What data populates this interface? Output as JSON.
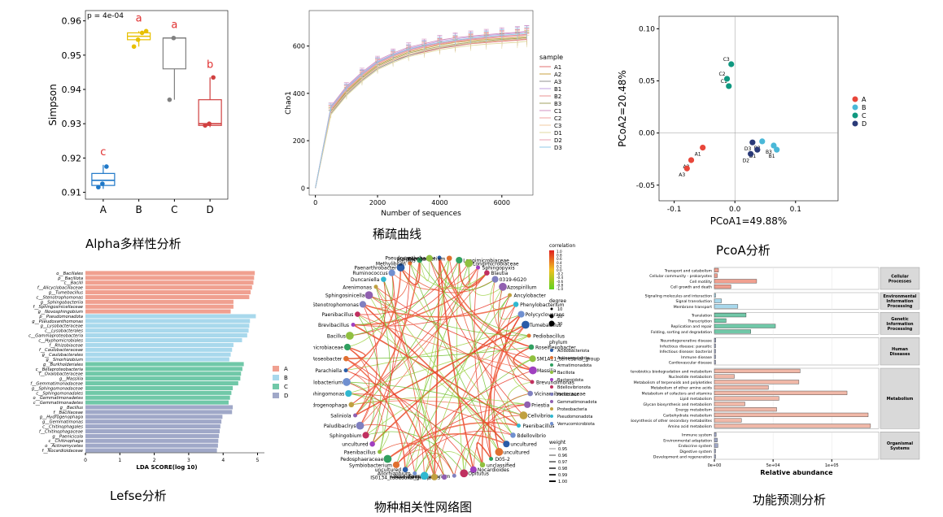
{
  "captions": {
    "alpha": "Alpha多样性分析",
    "rarefaction": "稀疏曲线",
    "pcoa": "PcoA分析",
    "lefse": "Lefse分析",
    "network": "物种相关性网络图",
    "function": "功能预测分析"
  },
  "colors": {
    "A": "#1f78c8",
    "B": "#e8c000",
    "C": "#808080",
    "D": "#d04040"
  },
  "chart_data": [
    {
      "id": "alpha",
      "type": "box",
      "annotation": "p = 4e-04",
      "ylabel": "Simpson",
      "ylim": [
        0.908,
        0.963
      ],
      "yticks": [
        "0.91",
        "0.92",
        "0.93",
        "0.94",
        "0.95",
        "0.96"
      ],
      "categories": [
        "A",
        "B",
        "C",
        "D"
      ],
      "letters": [
        "c",
        "a",
        "a",
        "b"
      ],
      "boxes": [
        {
          "min": 0.911,
          "q1": 0.912,
          "median": 0.9135,
          "q3": 0.9155,
          "max": 0.918,
          "points": [
            0.9115,
            0.9125,
            0.9175
          ]
        },
        {
          "min": 0.9525,
          "q1": 0.9545,
          "median": 0.9555,
          "q3": 0.9565,
          "max": 0.957,
          "points": [
            0.9525,
            0.9545,
            0.9565,
            0.957
          ]
        },
        {
          "min": 0.937,
          "q1": 0.946,
          "median": 0.955,
          "q3": 0.955,
          "max": 0.955,
          "points": [
            0.937,
            0.955
          ]
        },
        {
          "min": 0.929,
          "q1": 0.9295,
          "median": 0.93,
          "q3": 0.937,
          "max": 0.9435,
          "points": [
            0.9295,
            0.93,
            0.9435
          ]
        }
      ]
    },
    {
      "id": "rarefaction",
      "type": "line",
      "xlabel": "Number of sequences",
      "ylabel": "Chao1",
      "xlim": [
        -200,
        7000
      ],
      "ylim": [
        -30,
        750
      ],
      "xticks": [
        0,
        2000,
        4000,
        6000
      ],
      "yticks": [
        0,
        200,
        400,
        600
      ],
      "legend_title": "sample",
      "x": [
        0,
        500,
        1000,
        1500,
        2000,
        2500,
        3000,
        3500,
        4000,
        4500,
        5000,
        5500,
        6000,
        6500,
        6800
      ],
      "series": [
        {
          "name": "A1",
          "color": "#e07070",
          "values": [
            0,
            320,
            400,
            460,
            510,
            540,
            560,
            575,
            590,
            600,
            610,
            615,
            620,
            625,
            628
          ]
        },
        {
          "name": "A2",
          "color": "#c8a040",
          "values": [
            0,
            330,
            410,
            470,
            520,
            550,
            575,
            590,
            605,
            615,
            622,
            628,
            632,
            636,
            640
          ]
        },
        {
          "name": "A3",
          "color": "#909090",
          "values": [
            0,
            315,
            395,
            455,
            505,
            535,
            560,
            578,
            592,
            602,
            612,
            618,
            624,
            628,
            632
          ]
        },
        {
          "name": "B1",
          "color": "#c0a0e0",
          "values": [
            0,
            340,
            425,
            485,
            535,
            565,
            590,
            605,
            620,
            630,
            638,
            644,
            650,
            655,
            660
          ]
        },
        {
          "name": "B2",
          "color": "#e89090",
          "values": [
            0,
            335,
            420,
            480,
            530,
            560,
            585,
            600,
            612,
            622,
            630,
            636,
            642,
            646,
            650
          ]
        },
        {
          "name": "B3",
          "color": "#a0a060",
          "values": [
            0,
            325,
            405,
            465,
            515,
            545,
            570,
            585,
            598,
            608,
            616,
            622,
            628,
            632,
            635
          ]
        },
        {
          "name": "C1",
          "color": "#d090c0",
          "values": [
            0,
            345,
            430,
            490,
            540,
            570,
            595,
            610,
            625,
            635,
            642,
            648,
            654,
            658,
            662
          ]
        },
        {
          "name": "C2",
          "color": "#f0a0a0",
          "values": [
            0,
            330,
            415,
            475,
            525,
            555,
            580,
            595,
            608,
            618,
            626,
            632,
            638,
            642,
            646
          ]
        },
        {
          "name": "C3",
          "color": "#f0c8a0",
          "values": [
            0,
            320,
            400,
            460,
            510,
            540,
            565,
            580,
            594,
            604,
            612,
            618,
            624,
            628,
            632
          ]
        },
        {
          "name": "D1",
          "color": "#e0d8a0",
          "values": [
            0,
            310,
            390,
            450,
            500,
            530,
            555,
            570,
            584,
            594,
            602,
            608,
            612,
            616,
            620
          ]
        },
        {
          "name": "D2",
          "color": "#e8a0b0",
          "values": [
            0,
            335,
            418,
            478,
            528,
            558,
            582,
            598,
            610,
            620,
            628,
            634,
            640,
            644,
            648
          ]
        },
        {
          "name": "D3",
          "color": "#90c8e8",
          "values": [
            0,
            340,
            422,
            482,
            532,
            562,
            586,
            602,
            615,
            625,
            633,
            640,
            646,
            650,
            654
          ]
        }
      ]
    },
    {
      "id": "pcoa",
      "type": "scatter",
      "xlabel": "PCoA1=49.88%",
      "ylabel": "PCoA2=20.48%",
      "xlim": [
        -0.125,
        0.17
      ],
      "ylim": [
        -0.065,
        0.112
      ],
      "xticks": [
        "-0.1",
        "0.0",
        "0.1"
      ],
      "xtick_values": [
        -0.1,
        0.0,
        0.1
      ],
      "yticks": [
        "-0.05",
        "0.00",
        "0.05",
        "0.10"
      ],
      "ytick_values": [
        -0.05,
        0.0,
        0.05,
        0.1
      ],
      "legend": [
        "A",
        "B",
        "C",
        "D"
      ],
      "legend_colors": [
        "#e8463a",
        "#4ab8d8",
        "#109880",
        "#2a3a78"
      ],
      "points": [
        {
          "label": "A1",
          "group": "A",
          "x": -0.053,
          "y": -0.014
        },
        {
          "label": "A2",
          "group": "A",
          "x": -0.072,
          "y": -0.026
        },
        {
          "label": "A3",
          "group": "A",
          "x": -0.079,
          "y": -0.034
        },
        {
          "label": "B1",
          "group": "B",
          "x": 0.069,
          "y": -0.016
        },
        {
          "label": "B2",
          "group": "B",
          "x": 0.045,
          "y": -0.008
        },
        {
          "label": "B3",
          "group": "B",
          "x": 0.064,
          "y": -0.012
        },
        {
          "label": "C1",
          "group": "C",
          "x": -0.01,
          "y": 0.045
        },
        {
          "label": "C2",
          "group": "C",
          "x": -0.013,
          "y": 0.052
        },
        {
          "label": "C3",
          "group": "C",
          "x": -0.006,
          "y": 0.066
        },
        {
          "label": "D1",
          "group": "D",
          "x": 0.037,
          "y": -0.016
        },
        {
          "label": "D2",
          "group": "D",
          "x": 0.026,
          "y": -0.02
        },
        {
          "label": "D3",
          "group": "D",
          "x": 0.029,
          "y": -0.009
        }
      ]
    },
    {
      "id": "lefse",
      "type": "bar",
      "orientation": "horizontal",
      "xlabel": "LDA SCORE(log 10)",
      "xlim": [
        0,
        5.2
      ],
      "xticks": [
        0,
        1,
        2,
        3,
        4,
        5
      ],
      "legend": [
        "A",
        "B",
        "C",
        "D"
      ],
      "legend_colors": [
        "#f0a090",
        "#a8d8ec",
        "#70c8a8",
        "#a0a8c8"
      ],
      "categories": [
        "o__Bacillales",
        "p__Bacillota",
        "c__Bacilli",
        "f__Alicyclobacillaceae",
        "g__Tumebacillus",
        "c__Stenotrophomonas",
        "g__Sphingobacteriia",
        "f__Sphingosinicellaceae",
        "g__Novosphingobium",
        "p__Pseudomonadota",
        "g__Pseudoxanthomonas",
        "g__Lysobacteraceae",
        "c__Lysobacterales",
        "c__Gammaproteobacteria",
        "c__Hyphomicrobiales",
        "f__Rhizobiaceae",
        "f__Caulobacteraceae",
        "g__Caulobacterales",
        "g__Sinorhizobium",
        "g__Burkholderiales",
        "c__Betaproteobacteria",
        "f__Oxalobacteraceae",
        "g__Massilia",
        "f__Gemmatimonadaceae",
        "g__Sphingomonadaceae",
        "c__Sphingomonadales",
        "o__Gemmatimonadetes",
        "c__Gemmatimonadetes",
        "g__Bacillus",
        "f__Bacillaceae",
        "g__Hydrogenophaga",
        "g__Gemmatimonas",
        "c__Chitinophagales",
        "f__Chitinophagaceae",
        "g__Paenicicola",
        "c__Chitinophaga",
        "o__Actinomycetes",
        "f__Nocardioidaceae"
      ],
      "values": [
        4.92,
        4.9,
        4.88,
        4.84,
        4.8,
        4.76,
        4.3,
        4.3,
        4.22,
        4.95,
        4.78,
        4.76,
        4.74,
        4.7,
        4.55,
        4.3,
        4.26,
        4.22,
        4.18,
        4.6,
        4.56,
        4.52,
        4.5,
        4.44,
        4.28,
        4.24,
        4.2,
        4.16,
        4.28,
        4.26,
        3.98,
        3.95,
        3.92,
        3.9,
        3.88,
        3.86,
        3.85,
        3.82
      ],
      "groups": [
        "A",
        "A",
        "A",
        "A",
        "A",
        "A",
        "A",
        "A",
        "A",
        "B",
        "B",
        "B",
        "B",
        "B",
        "B",
        "B",
        "B",
        "B",
        "B",
        "C",
        "C",
        "C",
        "C",
        "C",
        "C",
        "C",
        "C",
        "C",
        "D",
        "D",
        "D",
        "D",
        "D",
        "D",
        "D",
        "D",
        "D",
        "D"
      ]
    },
    {
      "id": "network",
      "type": "network",
      "legend_colorbar_title": "correlation",
      "colorbar_ticks": [
        "1.0",
        "0.8",
        "0.6",
        "0.4",
        "0.2",
        "0.0",
        "-0.2",
        "-0.4",
        "-0.6",
        "-0.8",
        "-1.0"
      ],
      "degree_title": "degree",
      "degree_values": [
        "10",
        "20",
        "30"
      ],
      "phylum_title": "phylum",
      "phyla": [
        "Acidobacteriota",
        "Actinomycetota",
        "Armatimonadota",
        "Bacillota",
        "Bacteroidota",
        "Bdellovibrionota",
        "Firmicutes",
        "Gemmatimonadota",
        "Proteobacteria",
        "Pseudomonadota",
        "Verrucomicrobiota"
      ],
      "phyla_colors": [
        "#2a5ca8",
        "#e07030",
        "#30a060",
        "#90c040",
        "#a040c0",
        "#c03060",
        "#8080c0",
        "#9060b0",
        "#c0a040",
        "#30b8d0",
        "#7090d0"
      ],
      "weight_title": "weight",
      "weights": [
        "0.95",
        "0.96",
        "0.97",
        "0.98",
        "0.99",
        "1.00"
      ],
      "nodes": [
        "Pseudoxanthobacter",
        "Brevibacterium",
        "Longimicrobiaceae",
        "Longimicrobiaceae",
        "Sphingopyxis",
        "Blautia",
        "0319-6G20",
        "Azospirillum",
        "Ancylobacter",
        "Phenylobacterium",
        "Polycyclovorans",
        "Tumebacillus",
        "Pediobacillus",
        "Roseiflexobacter",
        "SM1A11_terrestrial_group",
        "Massilia",
        "Brevundimonas",
        "Vicinamibacteraceae",
        "Priestia",
        "Cellvibrio",
        "Paenibacillus",
        "Bdellovibrio",
        "uncultured",
        "uncultured",
        "D05-2",
        "unclassified",
        "Nocardioides",
        "Opitutus",
        "Exiguobacterium",
        "Pseudoxanthomonas",
        "IS0134_terrestrial_group",
        "Roseateles",
        "Allorhizobium",
        "uncultured",
        "Symbiobacterium",
        "Pedosphaeraceae",
        "Paenibacillus",
        "uncultured",
        "Sphingobium",
        "Paludibaclrys",
        "Saliniola",
        "Hydrogenophaga",
        "Sphingomonas",
        "Phenylobacterium",
        "Parachiella",
        "Roseobacter",
        "Longimicrobiaceae",
        "Bacillus",
        "Brevibacillus",
        "Paenibacillus",
        "Stenotrophomonas",
        "Sphingosinicella",
        "Arenimonas",
        "Duncaniella",
        "Ruminococcus",
        "Paenarthrobacter",
        "Methylibium",
        "Bacillus",
        "Halomonas"
      ]
    },
    {
      "id": "function",
      "type": "bar",
      "orientation": "horizontal",
      "xlabel": "Relative abundance",
      "xticks": [
        "0e+00",
        "5e+04",
        "1e+05"
      ],
      "xtick_values": [
        0,
        50000,
        100000
      ],
      "xlim": [
        0,
        140000
      ],
      "legend": [
        "A",
        "B",
        "C",
        "D"
      ],
      "facets": [
        {
          "label": "Cellular\nProcesses",
          "categories": [
            "Transport and catabolism",
            "Cellular community - prokaryotes",
            "Cell motility",
            "Cell growth and death"
          ],
          "values": [
            3500,
            2500,
            36000,
            14000
          ],
          "colors": [
            "#f0a090",
            "#f0a090",
            "#f0a090",
            "#f0a090"
          ]
        },
        {
          "label": "Environmental\nInformation\nProcessing",
          "categories": [
            "Signaling molecules and interaction",
            "Signal transduction",
            "Membrane transport"
          ],
          "values": [
            400,
            6000,
            20000
          ],
          "colors": [
            "#a8d8ec",
            "#a8d8ec",
            "#a8d8ec"
          ]
        },
        {
          "label": "Genetic\nInformation\nProcessing",
          "categories": [
            "Translation",
            "Transcription",
            "Replication and repair",
            "Folding, sorting and degradation"
          ],
          "values": [
            27000,
            10000,
            52000,
            31000
          ],
          "colors": [
            "#70c8a8",
            "#70c8a8",
            "#70c8a8",
            "#70c8a8"
          ]
        },
        {
          "label": "Human\nDiseases",
          "categories": [
            "Neurodegenerative disease",
            "Infectious disease: parasitic",
            "Infectious disease: bacterial",
            "Immune disease",
            "Cardiovascular disease"
          ],
          "values": [
            1200,
            800,
            1000,
            600,
            500
          ],
          "colors": [
            "#a0a8c8",
            "#a0a8c8",
            "#a0a8c8",
            "#a0a8c8",
            "#a0a8c8"
          ]
        },
        {
          "label": "Metabolism",
          "categories": [
            "Xenobiotics biodegradation and metabolism",
            "Nucleotide metabolism",
            "Metabolism of terpenoids and polyketides",
            "Metabolism of other amino acids",
            "Metabolism of cofactors and vitamins",
            "Lipid metabolism",
            "Glycan biosynthesis and metabolism",
            "Energy metabolism",
            "Carbohydrate metabolism",
            "Biosynthesis of other secondary metabolites",
            "Amino acid metabolism"
          ],
          "values": [
            73000,
            17000,
            72000,
            46000,
            113000,
            55000,
            26000,
            53000,
            131000,
            23000,
            133000
          ],
          "colors": [
            "#f0b8a8",
            "#f0b8a8",
            "#f0b8a8",
            "#f0b8a8",
            "#f0b8a8",
            "#f0b8a8",
            "#f0b8a8",
            "#f0b8a8",
            "#f0b8a8",
            "#f0b8a8",
            "#f0b8a8"
          ]
        },
        {
          "label": "Organismal\nSystems",
          "categories": [
            "Immune system",
            "Environmental adaptation",
            "Endocrine system",
            "Digestive system",
            "Development and regeneration"
          ],
          "values": [
            1500,
            2500,
            3000,
            700,
            600
          ],
          "colors": [
            "#a0a8c8",
            "#a0a8c8",
            "#a0a8c8",
            "#a0a8c8",
            "#a0a8c8"
          ]
        }
      ]
    }
  ]
}
